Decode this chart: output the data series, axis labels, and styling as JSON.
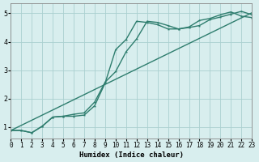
{
  "xlabel": "Humidex (Indice chaleur)",
  "bg_color": "#d8eeee",
  "grid_color": "#aad0d0",
  "line_color": "#2e7d6e",
  "xlim": [
    0,
    23
  ],
  "ylim": [
    0.6,
    5.35
  ],
  "xticks": [
    0,
    1,
    2,
    3,
    4,
    5,
    6,
    7,
    8,
    9,
    10,
    11,
    12,
    13,
    14,
    15,
    16,
    17,
    18,
    19,
    20,
    21,
    22,
    23
  ],
  "yticks": [
    1,
    2,
    3,
    4,
    5
  ],
  "curve1_x": [
    0,
    1,
    2,
    3,
    4,
    5,
    6,
    7,
    8,
    9,
    10,
    11,
    12,
    13,
    14,
    15,
    16,
    17,
    18,
    19,
    20,
    21,
    22,
    23
  ],
  "curve1_y": [
    0.88,
    0.88,
    0.8,
    1.03,
    1.35,
    1.38,
    1.38,
    1.42,
    1.75,
    2.55,
    3.72,
    4.08,
    4.72,
    4.68,
    4.6,
    4.45,
    4.45,
    4.52,
    4.75,
    4.82,
    4.95,
    5.05,
    4.9,
    4.85
  ],
  "curve2_x": [
    0,
    1,
    2,
    3,
    4,
    5,
    6,
    7,
    8,
    9,
    10,
    11,
    12,
    13,
    14,
    15,
    16,
    17,
    18,
    19,
    20,
    21,
    22,
    23
  ],
  "curve2_y": [
    0.88,
    0.88,
    0.8,
    1.03,
    1.35,
    1.38,
    1.45,
    1.5,
    1.88,
    2.58,
    2.95,
    3.65,
    4.1,
    4.72,
    4.68,
    4.57,
    4.45,
    4.5,
    4.57,
    4.78,
    4.87,
    4.97,
    5.07,
    4.95
  ],
  "line3_x": [
    0,
    23
  ],
  "line3_y": [
    0.88,
    5.02
  ],
  "tick_fontsize": 5.5,
  "xlabel_fontsize": 6.5
}
